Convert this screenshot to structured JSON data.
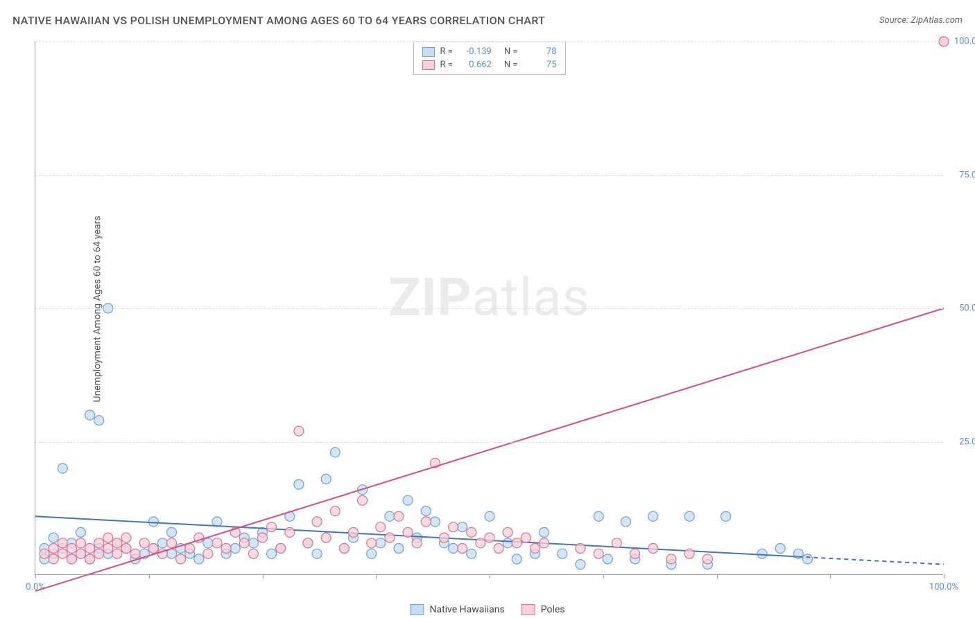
{
  "title": "NATIVE HAWAIIAN VS POLISH UNEMPLOYMENT AMONG AGES 60 TO 64 YEARS CORRELATION CHART",
  "source": "Source: ZipAtlas.com",
  "ylabel": "Unemployment Among Ages 60 to 64 years",
  "watermark_bold": "ZIP",
  "watermark_rest": "atlas",
  "chart": {
    "type": "scatter",
    "xlim": [
      0,
      100
    ],
    "ylim": [
      0,
      100
    ],
    "xtick_positions": [
      0,
      12.5,
      25,
      37.5,
      50,
      62.5,
      75,
      87.5,
      100
    ],
    "ytick_positions": [
      25,
      50,
      75,
      100
    ],
    "xtick_labels": {
      "0": "0.0%",
      "100": "100.0%"
    },
    "ytick_labels": {
      "25": "25.0%",
      "50": "50.0%",
      "75": "75.0%",
      "100": "100.0%"
    },
    "grid_color": "#dddddd",
    "axis_color": "#999999",
    "tick_label_color": "#5b8fd6",
    "background_color": "#ffffff",
    "series": [
      {
        "name": "Native Hawaiians",
        "marker_fill": "#c8dcf2",
        "marker_stroke": "#6aa3e0",
        "line_color": "#3b78c4",
        "line_width": 2,
        "marker_radius": 7,
        "R": "-0.139",
        "N": "78",
        "trend": {
          "x1": 0,
          "y1": 11,
          "x2": 100,
          "y2": 2,
          "dash_after_x": 84
        },
        "points": [
          [
            1,
            5
          ],
          [
            1,
            3
          ],
          [
            2,
            7
          ],
          [
            2,
            4
          ],
          [
            3,
            20
          ],
          [
            3,
            5
          ],
          [
            4,
            6
          ],
          [
            4,
            3
          ],
          [
            5,
            4
          ],
          [
            5,
            8
          ],
          [
            6,
            30
          ],
          [
            6,
            3
          ],
          [
            7,
            29
          ],
          [
            7,
            5
          ],
          [
            8,
            4
          ],
          [
            8,
            50
          ],
          [
            9,
            6
          ],
          [
            10,
            5
          ],
          [
            11,
            3
          ],
          [
            12,
            4
          ],
          [
            13,
            10
          ],
          [
            13,
            5
          ],
          [
            14,
            6
          ],
          [
            15,
            4
          ],
          [
            15,
            8
          ],
          [
            16,
            5
          ],
          [
            17,
            4
          ],
          [
            18,
            3
          ],
          [
            19,
            6
          ],
          [
            20,
            10
          ],
          [
            21,
            4
          ],
          [
            22,
            5
          ],
          [
            23,
            7
          ],
          [
            24,
            6
          ],
          [
            25,
            8
          ],
          [
            26,
            4
          ],
          [
            27,
            5
          ],
          [
            28,
            11
          ],
          [
            29,
            17
          ],
          [
            30,
            6
          ],
          [
            31,
            4
          ],
          [
            32,
            18
          ],
          [
            33,
            23
          ],
          [
            34,
            5
          ],
          [
            35,
            7
          ],
          [
            36,
            16
          ],
          [
            37,
            4
          ],
          [
            38,
            6
          ],
          [
            39,
            11
          ],
          [
            40,
            5
          ],
          [
            41,
            14
          ],
          [
            42,
            7
          ],
          [
            43,
            12
          ],
          [
            44,
            10
          ],
          [
            45,
            6
          ],
          [
            46,
            5
          ],
          [
            47,
            9
          ],
          [
            48,
            4
          ],
          [
            50,
            11
          ],
          [
            52,
            6
          ],
          [
            53,
            3
          ],
          [
            55,
            4
          ],
          [
            56,
            8
          ],
          [
            58,
            4
          ],
          [
            60,
            2
          ],
          [
            62,
            11
          ],
          [
            63,
            3
          ],
          [
            65,
            10
          ],
          [
            66,
            3
          ],
          [
            68,
            11
          ],
          [
            70,
            2
          ],
          [
            72,
            11
          ],
          [
            74,
            2
          ],
          [
            76,
            11
          ],
          [
            80,
            4
          ],
          [
            82,
            5
          ],
          [
            84,
            4
          ],
          [
            85,
            3
          ]
        ]
      },
      {
        "name": "Poles",
        "marker_fill": "#f6d0da",
        "marker_stroke": "#e46f92",
        "line_color": "#e14b7a",
        "line_width": 2,
        "marker_radius": 7,
        "R": "0.662",
        "N": "75",
        "trend": {
          "x1": 0,
          "y1": -3,
          "x2": 100,
          "y2": 50
        },
        "points": [
          [
            1,
            4
          ],
          [
            2,
            5
          ],
          [
            2,
            3
          ],
          [
            3,
            4
          ],
          [
            3,
            6
          ],
          [
            4,
            3
          ],
          [
            4,
            5
          ],
          [
            5,
            4
          ],
          [
            5,
            6
          ],
          [
            6,
            3
          ],
          [
            6,
            5
          ],
          [
            7,
            4
          ],
          [
            7,
            6
          ],
          [
            8,
            5
          ],
          [
            8,
            7
          ],
          [
            9,
            4
          ],
          [
            9,
            6
          ],
          [
            10,
            5
          ],
          [
            10,
            7
          ],
          [
            11,
            4
          ],
          [
            12,
            6
          ],
          [
            13,
            5
          ],
          [
            14,
            4
          ],
          [
            15,
            6
          ],
          [
            16,
            3
          ],
          [
            17,
            5
          ],
          [
            18,
            7
          ],
          [
            19,
            4
          ],
          [
            20,
            6
          ],
          [
            21,
            5
          ],
          [
            22,
            8
          ],
          [
            23,
            6
          ],
          [
            24,
            4
          ],
          [
            25,
            7
          ],
          [
            26,
            9
          ],
          [
            27,
            5
          ],
          [
            28,
            8
          ],
          [
            29,
            27
          ],
          [
            30,
            6
          ],
          [
            31,
            10
          ],
          [
            32,
            7
          ],
          [
            33,
            12
          ],
          [
            34,
            5
          ],
          [
            35,
            8
          ],
          [
            36,
            14
          ],
          [
            37,
            6
          ],
          [
            38,
            9
          ],
          [
            39,
            7
          ],
          [
            40,
            11
          ],
          [
            41,
            8
          ],
          [
            42,
            6
          ],
          [
            43,
            10
          ],
          [
            44,
            21
          ],
          [
            45,
            7
          ],
          [
            46,
            9
          ],
          [
            47,
            5
          ],
          [
            48,
            8
          ],
          [
            49,
            6
          ],
          [
            50,
            7
          ],
          [
            51,
            5
          ],
          [
            52,
            8
          ],
          [
            53,
            6
          ],
          [
            54,
            7
          ],
          [
            55,
            5
          ],
          [
            56,
            6
          ],
          [
            60,
            5
          ],
          [
            62,
            4
          ],
          [
            64,
            6
          ],
          [
            66,
            4
          ],
          [
            68,
            5
          ],
          [
            70,
            3
          ],
          [
            72,
            4
          ],
          [
            74,
            3
          ],
          [
            100,
            100
          ],
          [
            100,
            100
          ]
        ]
      }
    ],
    "legend": [
      {
        "label": "Native Hawaiians",
        "fill": "#c8dcf2",
        "stroke": "#6aa3e0"
      },
      {
        "label": "Poles",
        "fill": "#f6d0da",
        "stroke": "#e46f92"
      }
    ]
  },
  "stats_box": {
    "rows": [
      {
        "swatch_fill": "#c8dcf2",
        "swatch_stroke": "#6aa3e0",
        "R_label": "R =",
        "R": "-0.139",
        "N_label": "N =",
        "N": "78"
      },
      {
        "swatch_fill": "#f6d0da",
        "swatch_stroke": "#e46f92",
        "R_label": "R =",
        "R": "0.662",
        "N_label": "N =",
        "N": "75"
      }
    ]
  }
}
